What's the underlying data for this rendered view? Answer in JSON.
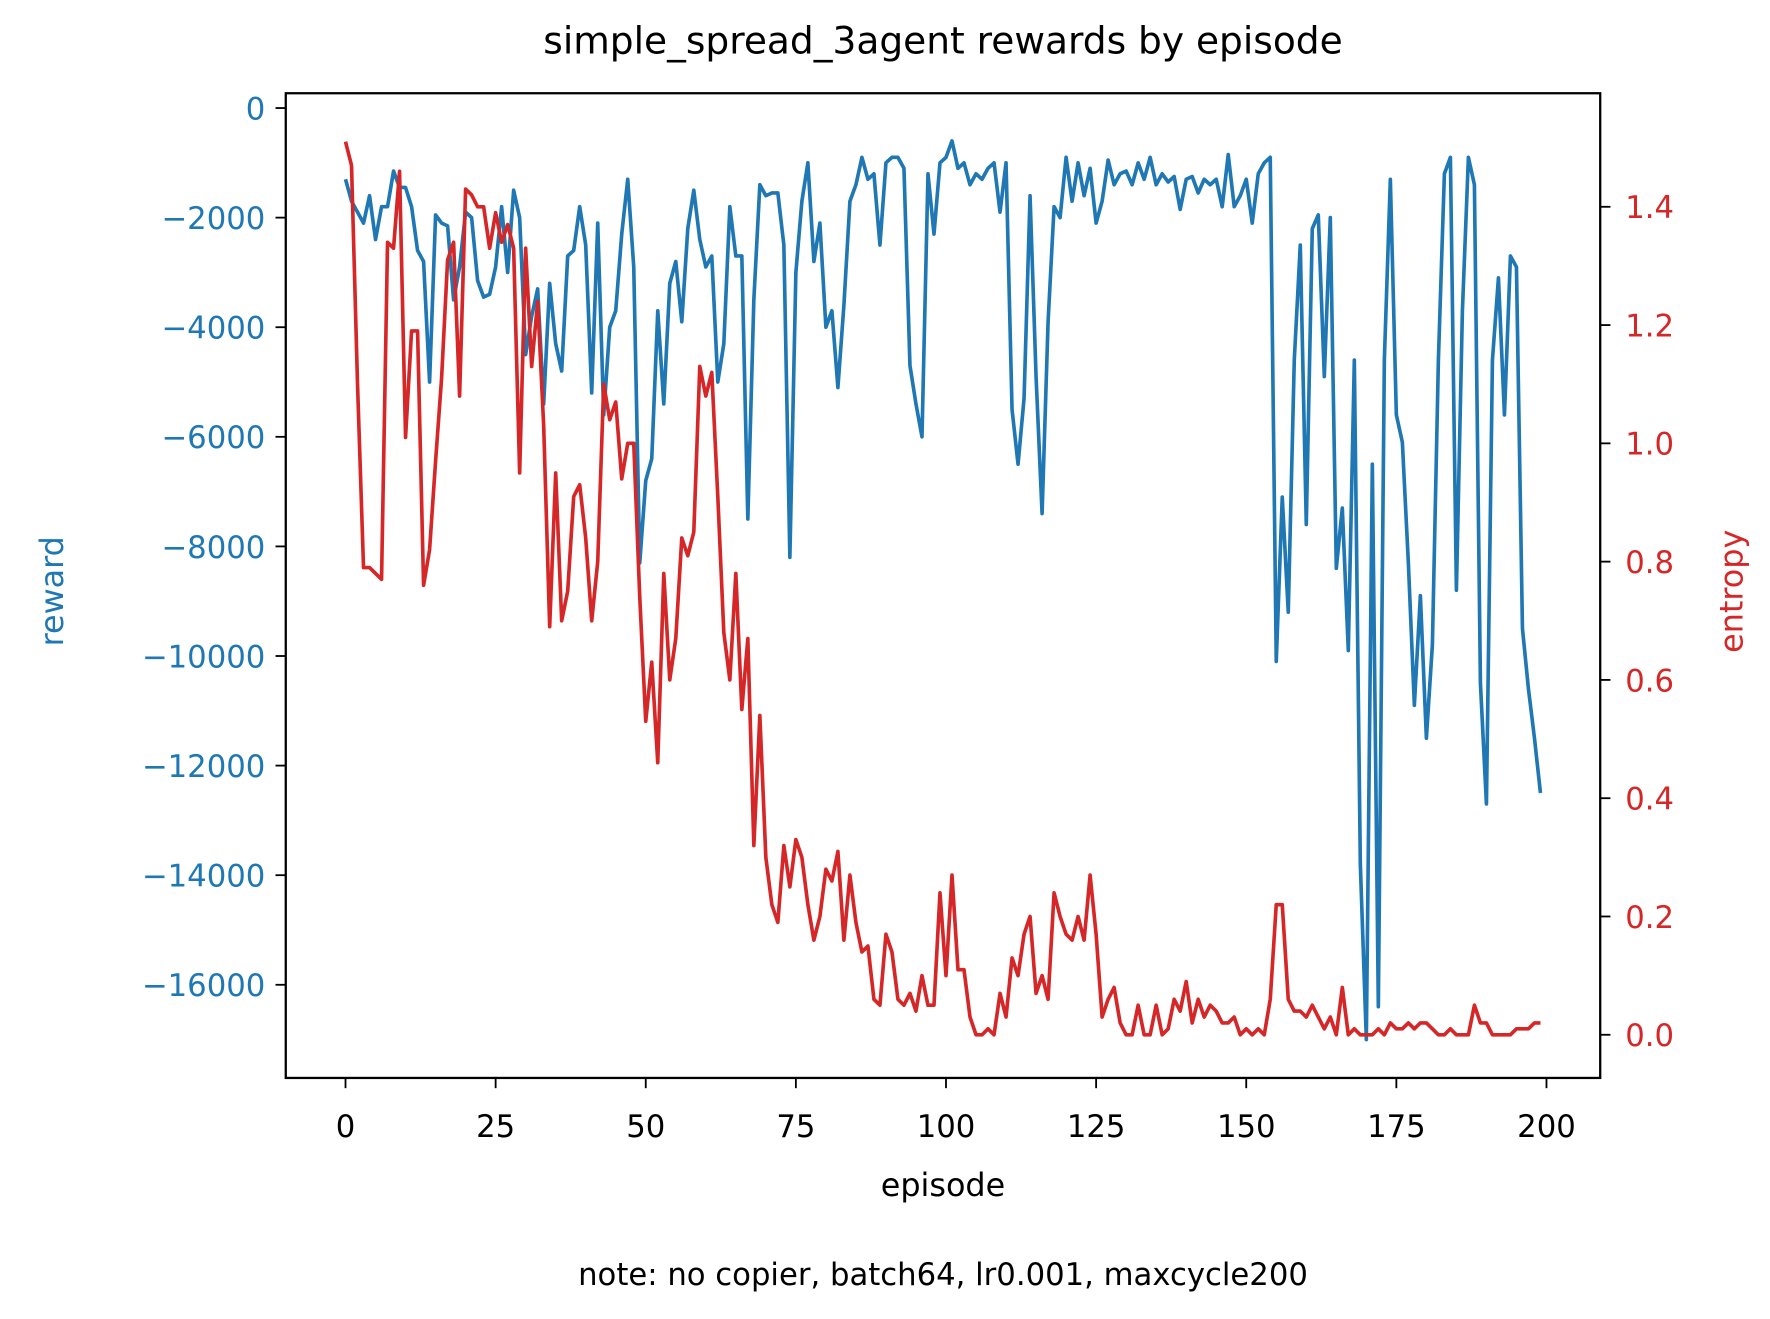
{
  "chart_data": {
    "type": "line",
    "title": "simple_spread_3agent rewards by episode",
    "xlabel": "episode",
    "ylabel": "reward",
    "y2label": "entropy",
    "note": "note: no copier, batch64, lr0.001, maxcycle200",
    "x": [
      0,
      1,
      2,
      3,
      4,
      5,
      6,
      7,
      8,
      9,
      10,
      11,
      12,
      13,
      14,
      15,
      16,
      17,
      18,
      19,
      20,
      21,
      22,
      23,
      24,
      25,
      26,
      27,
      28,
      29,
      30,
      31,
      32,
      33,
      34,
      35,
      36,
      37,
      38,
      39,
      40,
      41,
      42,
      43,
      44,
      45,
      46,
      47,
      48,
      49,
      50,
      51,
      52,
      53,
      54,
      55,
      56,
      57,
      58,
      59,
      60,
      61,
      62,
      63,
      64,
      65,
      66,
      67,
      68,
      69,
      70,
      71,
      72,
      73,
      74,
      75,
      76,
      77,
      78,
      79,
      80,
      81,
      82,
      83,
      84,
      85,
      86,
      87,
      88,
      89,
      90,
      91,
      92,
      93,
      94,
      95,
      96,
      97,
      98,
      99,
      100,
      101,
      102,
      103,
      104,
      105,
      106,
      107,
      108,
      109,
      110,
      111,
      112,
      113,
      114,
      115,
      116,
      117,
      118,
      119,
      120,
      121,
      122,
      123,
      124,
      125,
      126,
      127,
      128,
      129,
      130,
      131,
      132,
      133,
      134,
      135,
      136,
      137,
      138,
      139,
      140,
      141,
      142,
      143,
      144,
      145,
      146,
      147,
      148,
      149,
      150,
      151,
      152,
      153,
      154,
      155,
      156,
      157,
      158,
      159,
      160,
      161,
      162,
      163,
      164,
      165,
      166,
      167,
      168,
      169,
      170,
      171,
      172,
      173,
      174,
      175,
      176,
      177,
      178,
      179,
      180,
      181,
      182,
      183,
      184,
      185,
      186,
      187,
      188,
      189,
      190,
      191,
      192,
      193,
      194,
      195,
      196,
      197,
      198,
      199
    ],
    "series": [
      {
        "color": "#1f77b4",
        "axis": "y",
        "values": [
          -1300,
          -1700,
          -1900,
          -2100,
          -1600,
          -2400,
          -1800,
          -1800,
          -1150,
          -1450,
          -1450,
          -1800,
          -2600,
          -2800,
          -5000,
          -1950,
          -2100,
          -2150,
          -3500,
          -2900,
          -1900,
          -2000,
          -3150,
          -3450,
          -3400,
          -2900,
          -1800,
          -3000,
          -1500,
          -2000,
          -4500,
          -3800,
          -3300,
          -5400,
          -3200,
          -4300,
          -4800,
          -2700,
          -2600,
          -1800,
          -2500,
          -5200,
          -2100,
          -5600,
          -4000,
          -3700,
          -2300,
          -1300,
          -2900,
          -8300,
          -6800,
          -6400,
          -3700,
          -5400,
          -3200,
          -2800,
          -3900,
          -2200,
          -1500,
          -2400,
          -2900,
          -2700,
          -5000,
          -4300,
          -1800,
          -2700,
          -2700,
          -7500,
          -3500,
          -1400,
          -1600,
          -1550,
          -1550,
          -2500,
          -8200,
          -3000,
          -1700,
          -1000,
          -2800,
          -2100,
          -4000,
          -3700,
          -5100,
          -3600,
          -1700,
          -1400,
          -900,
          -1300,
          -1200,
          -2500,
          -1000,
          -900,
          -900,
          -1100,
          -4700,
          -5400,
          -6000,
          -1200,
          -2300,
          -1000,
          -900,
          -600,
          -1100,
          -1000,
          -1400,
          -1200,
          -1300,
          -1100,
          -1000,
          -1900,
          -1000,
          -5500,
          -6500,
          -5300,
          -1600,
          -4900,
          -7400,
          -3900,
          -1800,
          -2000,
          -900,
          -1700,
          -1000,
          -1600,
          -1100,
          -2100,
          -1700,
          -950,
          -1400,
          -1200,
          -1150,
          -1400,
          -1000,
          -1300,
          -900,
          -1400,
          -1200,
          -1350,
          -1250,
          -1850,
          -1300,
          -1250,
          -1550,
          -1300,
          -1400,
          -1300,
          -1800,
          -850,
          -1800,
          -1600,
          -1300,
          -2100,
          -1200,
          -1000,
          -900,
          -10100,
          -7100,
          -9200,
          -4600,
          -2500,
          -7600,
          -2200,
          -1950,
          -4900,
          -2000,
          -8400,
          -7300,
          -9900,
          -4600,
          -13800,
          -17000,
          -6500,
          -16400,
          -4600,
          -1300,
          -5600,
          -6100,
          -8300,
          -10900,
          -8900,
          -11500,
          -9800,
          -4600,
          -1200,
          -900,
          -8800,
          -3700,
          -900,
          -1400,
          -10500,
          -12700,
          -4600,
          -3100,
          -5600,
          -2700,
          -2900,
          -9500,
          -10600,
          -11500,
          -12500
        ]
      },
      {
        "color": "#d62728",
        "axis": "y2",
        "values": [
          1.51,
          1.47,
          1.1,
          0.79,
          0.79,
          0.78,
          0.77,
          1.34,
          1.33,
          1.46,
          1.01,
          1.19,
          1.19,
          0.76,
          0.82,
          0.97,
          1.11,
          1.31,
          1.34,
          1.08,
          1.43,
          1.42,
          1.4,
          1.4,
          1.33,
          1.39,
          1.34,
          1.37,
          1.33,
          0.95,
          1.33,
          1.13,
          1.24,
          1.03,
          0.69,
          0.95,
          0.7,
          0.75,
          0.91,
          0.93,
          0.84,
          0.7,
          0.8,
          1.1,
          1.04,
          1.07,
          0.94,
          1.0,
          1.0,
          0.74,
          0.53,
          0.63,
          0.46,
          0.78,
          0.6,
          0.67,
          0.84,
          0.81,
          0.85,
          1.13,
          1.08,
          1.12,
          0.91,
          0.68,
          0.6,
          0.78,
          0.55,
          0.67,
          0.32,
          0.54,
          0.3,
          0.22,
          0.19,
          0.32,
          0.25,
          0.33,
          0.3,
          0.22,
          0.16,
          0.2,
          0.28,
          0.26,
          0.31,
          0.16,
          0.27,
          0.19,
          0.14,
          0.15,
          0.06,
          0.05,
          0.17,
          0.14,
          0.06,
          0.05,
          0.07,
          0.04,
          0.1,
          0.05,
          0.05,
          0.24,
          0.1,
          0.27,
          0.11,
          0.11,
          0.03,
          0.0,
          0.0,
          0.01,
          0.0,
          0.07,
          0.03,
          0.13,
          0.1,
          0.17,
          0.2,
          0.07,
          0.1,
          0.06,
          0.24,
          0.2,
          0.17,
          0.16,
          0.2,
          0.16,
          0.27,
          0.17,
          0.03,
          0.06,
          0.08,
          0.02,
          0.0,
          0.0,
          0.05,
          0.0,
          0.0,
          0.05,
          0.0,
          0.01,
          0.06,
          0.04,
          0.09,
          0.02,
          0.06,
          0.03,
          0.05,
          0.04,
          0.02,
          0.02,
          0.03,
          0.0,
          0.01,
          0.0,
          0.01,
          0.0,
          0.06,
          0.22,
          0.22,
          0.06,
          0.04,
          0.04,
          0.03,
          0.05,
          0.03,
          0.01,
          0.03,
          0.0,
          0.08,
          0.0,
          0.01,
          0.0,
          0.0,
          0.0,
          0.01,
          0.0,
          0.02,
          0.01,
          0.01,
          0.02,
          0.01,
          0.02,
          0.02,
          0.01,
          0.0,
          0.0,
          0.01,
          0.0,
          0.0,
          0.0,
          0.05,
          0.02,
          0.02,
          0.0,
          0.0,
          0.0,
          0.0,
          0.01,
          0.01,
          0.01,
          0.02,
          0.02
        ]
      }
    ],
    "xlim": [
      -9.95,
      208.95
    ],
    "xticks": [
      0,
      25,
      50,
      75,
      100,
      125,
      150,
      175,
      200
    ],
    "ylim": [
      -17700,
      270
    ],
    "yticks": [
      0,
      {
        "value": -2000,
        "label": "−2000"
      },
      {
        "value": -4000,
        "label": "−4000"
      },
      {
        "value": -6000,
        "label": "−6000"
      },
      {
        "value": -8000,
        "label": "−8000"
      },
      {
        "value": -10000,
        "label": "−10000"
      },
      {
        "value": -12000,
        "label": "−12000"
      },
      {
        "value": -14000,
        "label": "−14000"
      },
      {
        "value": -16000,
        "label": "−16000"
      }
    ],
    "y2lim": [
      -0.073,
      1.592
    ],
    "y2ticks": [
      {
        "value": 0,
        "label": "0.0"
      },
      0.2,
      0.4,
      0.6,
      0.8,
      {
        "value": 1,
        "label": "1.0"
      },
      1.2,
      1.4
    ],
    "ylabel_color": "#1f77b4",
    "y2label_color": "#d62728",
    "grid": false
  }
}
